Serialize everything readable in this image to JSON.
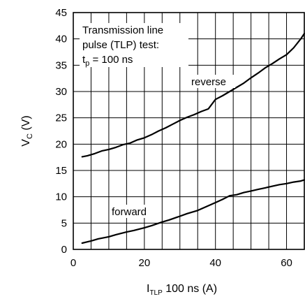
{
  "chart_data": {
    "type": "line",
    "xlabel": {
      "main": "I",
      "sub": "TLP",
      "rest": " 100 ns (A)"
    },
    "ylabel": {
      "main": "V",
      "sub": "C",
      "rest": " (V)"
    },
    "xlim": [
      0,
      65
    ],
    "ylim": [
      0,
      45
    ],
    "xticks": [
      0,
      20,
      40,
      60
    ],
    "yticks": [
      0,
      5,
      10,
      15,
      20,
      25,
      30,
      35,
      40,
      45
    ],
    "grid": true,
    "annotation": {
      "line1": "Transmission line",
      "line2": "pulse (TLP) test:",
      "line3_main": "t",
      "line3_sub": "p",
      "line3_rest": " = 100 ns"
    },
    "series": [
      {
        "name": "reverse",
        "x": [
          2.5,
          4,
          6,
          8,
          10,
          12,
          14,
          16,
          18,
          20,
          22,
          24,
          26,
          28,
          30,
          32,
          34,
          36,
          38,
          40,
          42,
          44,
          46,
          48,
          50,
          52,
          54,
          56,
          58,
          60,
          62,
          64,
          65
        ],
        "y": [
          17.6,
          17.8,
          18.2,
          18.7,
          19.0,
          19.4,
          19.9,
          20.2,
          20.8,
          21.2,
          21.8,
          22.5,
          23.1,
          23.8,
          24.5,
          25.1,
          25.6,
          26.2,
          26.7,
          28.5,
          29.2,
          30.0,
          30.8,
          31.6,
          32.6,
          33.5,
          34.5,
          35.3,
          36.2,
          37.0,
          38.3,
          40.0,
          41.0
        ]
      },
      {
        "name": "forward",
        "x": [
          2.5,
          5,
          7,
          10,
          12,
          15,
          17,
          20,
          22,
          25,
          27,
          30,
          32,
          35,
          37,
          40,
          42,
          44,
          46,
          48,
          50,
          52,
          54,
          56,
          58,
          60,
          62,
          64,
          65
        ],
        "y": [
          1.2,
          1.6,
          2.0,
          2.4,
          2.8,
          3.3,
          3.6,
          4.1,
          4.5,
          5.2,
          5.6,
          6.3,
          6.8,
          7.4,
          8.0,
          8.9,
          9.5,
          10.2,
          10.4,
          10.8,
          11.1,
          11.4,
          11.7,
          12.0,
          12.3,
          12.5,
          12.8,
          13.0,
          13.2
        ]
      }
    ]
  }
}
